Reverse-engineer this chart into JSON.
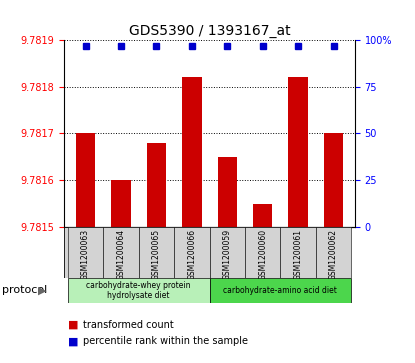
{
  "title": "GDS5390 / 1393167_at",
  "samples": [
    "GSM1200063",
    "GSM1200064",
    "GSM1200065",
    "GSM1200066",
    "GSM1200059",
    "GSM1200060",
    "GSM1200061",
    "GSM1200062"
  ],
  "bar_values": [
    9.7817,
    9.7816,
    9.78168,
    9.78182,
    9.78165,
    9.78155,
    9.78182,
    9.7817
  ],
  "percentile_values": [
    97,
    97,
    97,
    97,
    97,
    97,
    97,
    97
  ],
  "ylim_left": [
    9.7815,
    9.7819
  ],
  "ylim_right": [
    0,
    100
  ],
  "yticks_left": [
    9.7815,
    9.7816,
    9.7817,
    9.7818,
    9.7819
  ],
  "yticks_right": [
    0,
    25,
    50,
    75,
    100
  ],
  "bar_color": "#cc0000",
  "percentile_color": "#0000cc",
  "bg_color": "#ffffff",
  "protocol_label1": "carbohydrate-whey protein\nhydrolysate diet",
  "protocol_color1": "#b8f0b8",
  "protocol_label2": "carbohydrate-amino acid diet",
  "protocol_color2": "#4cd64c",
  "sample_bg_color": "#d3d3d3",
  "legend_bar_label": "transformed count",
  "legend_pct_label": "percentile rank within the sample",
  "protocol_text": "protocol"
}
